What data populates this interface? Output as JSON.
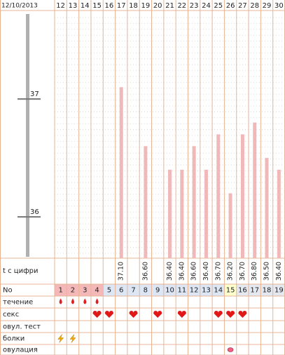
{
  "chart_data": {
    "type": "bar",
    "categories": [
      "12",
      "13",
      "14",
      "15",
      "16",
      "17",
      "18",
      "19",
      "20",
      "21",
      "22",
      "23",
      "24",
      "25",
      "26",
      "27",
      "28",
      "29",
      "30"
    ],
    "values": [
      null,
      null,
      null,
      null,
      null,
      37.1,
      null,
      36.6,
      null,
      36.4,
      36.4,
      36.6,
      36.4,
      36.7,
      36.2,
      36.7,
      36.8,
      36.5,
      36.4
    ],
    "value_labels": [
      null,
      null,
      null,
      null,
      null,
      "37.10",
      null,
      "36.60",
      null,
      "36.40",
      "36.40",
      "36.60",
      "36.40",
      "36.70",
      "36.20",
      "36.70",
      "36.80",
      "36.50",
      "36.40"
    ],
    "color": "#f0b8b8",
    "ylim": [
      35.65,
      37.75
    ],
    "yticks": [
      36,
      37
    ],
    "grid": true
  },
  "table": {
    "date": "12/10/2013",
    "temp_label": "t с цифри",
    "cycle_label": "No",
    "cycle_days": [
      1,
      2,
      3,
      4,
      5,
      6,
      7,
      8,
      9,
      10,
      11,
      12,
      13,
      14,
      15,
      16,
      17,
      18,
      19
    ],
    "cycle_day_colors": [
      "#f4b8b8",
      "#f4b8b8",
      "#f4b8b8",
      "#f4b8b8",
      "#dde6f4",
      "#dde6f4",
      "#dde6f4",
      "#dde6f4",
      "#dde6f4",
      "#dde6f4",
      "#dde6f4",
      "#dde6f4",
      "#dde6f4",
      "#dde6f4",
      "#ffffcc",
      "#e4e8f0",
      "#e4e8f0",
      "#e4e8f0",
      "#e4e8f0"
    ],
    "symbol_rows": [
      {
        "label": "течение",
        "symbol": "drop",
        "marks": [
          true,
          true,
          true,
          true,
          false,
          false,
          false,
          false,
          false,
          false,
          false,
          false,
          false,
          false,
          false,
          false,
          false,
          false,
          false
        ]
      },
      {
        "label": "секс",
        "symbol": "heart",
        "marks": [
          false,
          false,
          false,
          true,
          true,
          false,
          true,
          false,
          true,
          false,
          true,
          false,
          false,
          true,
          true,
          true,
          false,
          false,
          false
        ]
      },
      {
        "label": "овул. тест",
        "symbol": "test",
        "marks": [
          false,
          false,
          false,
          false,
          false,
          false,
          false,
          false,
          false,
          false,
          false,
          false,
          false,
          false,
          false,
          false,
          false,
          false,
          false
        ]
      },
      {
        "label": "болки",
        "symbol": "bolt",
        "marks": [
          true,
          true,
          false,
          false,
          false,
          false,
          false,
          false,
          false,
          false,
          false,
          false,
          false,
          false,
          false,
          false,
          false,
          false,
          false
        ]
      },
      {
        "label": "овулация",
        "symbol": "egg",
        "marks": [
          false,
          false,
          false,
          false,
          false,
          false,
          false,
          false,
          false,
          false,
          false,
          false,
          false,
          false,
          true,
          false,
          false,
          false,
          false
        ]
      }
    ]
  }
}
